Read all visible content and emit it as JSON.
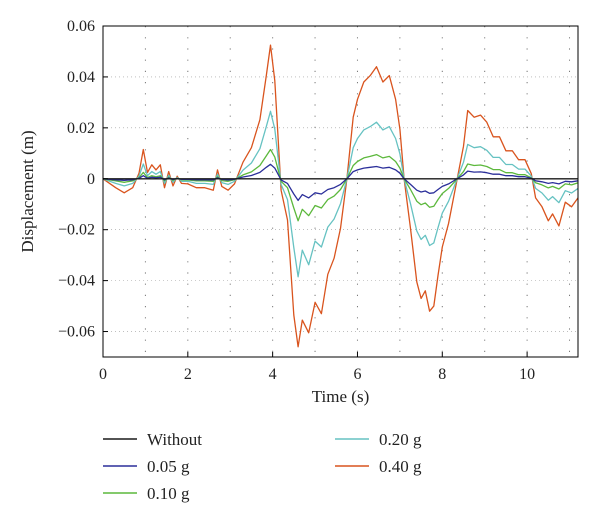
{
  "chart_data": {
    "type": "line",
    "xlabel": "Time (s)",
    "ylabel": "Displacement (m)",
    "xlim": [
      0,
      11.2
    ],
    "ylim": [
      -0.07,
      0.06
    ],
    "xticks": [
      0,
      2,
      4,
      6,
      8,
      10
    ],
    "xtick_labels": [
      "0",
      "2",
      "4",
      "6",
      "8",
      "10"
    ],
    "yticks": [
      -0.06,
      -0.04,
      -0.02,
      0,
      0.02,
      0.04,
      0.06
    ],
    "ytick_labels": [
      "−0.06",
      "−0.04",
      "−0.02",
      "0",
      "0.02",
      "0.04",
      "0.06"
    ],
    "grid": "dotted",
    "legend_position": "bottom",
    "x": [
      0,
      0.3,
      0.5,
      0.7,
      0.85,
      0.95,
      1.05,
      1.15,
      1.25,
      1.35,
      1.45,
      1.55,
      1.65,
      1.75,
      1.85,
      2.0,
      2.2,
      2.4,
      2.6,
      2.7,
      2.8,
      2.95,
      3.1,
      3.3,
      3.5,
      3.7,
      3.85,
      3.95,
      4.05,
      4.2,
      4.35,
      4.5,
      4.6,
      4.7,
      4.85,
      5.0,
      5.15,
      5.3,
      5.45,
      5.6,
      5.75,
      5.9,
      6.0,
      6.15,
      6.3,
      6.45,
      6.6,
      6.75,
      6.9,
      7.0,
      7.1,
      7.25,
      7.4,
      7.5,
      7.6,
      7.7,
      7.8,
      7.9,
      8.0,
      8.15,
      8.3,
      8.5,
      8.6,
      8.75,
      8.9,
      9.05,
      9.2,
      9.35,
      9.5,
      9.65,
      9.8,
      9.95,
      10.1,
      10.2,
      10.35,
      10.5,
      10.6,
      10.75,
      10.9,
      11.05,
      11.2
    ],
    "series": [
      {
        "name": "Without",
        "color": "#1a1a1a",
        "values": [
          0,
          0,
          0,
          0,
          0,
          0,
          0,
          0,
          0,
          0,
          0,
          0,
          0,
          0,
          0,
          0,
          0,
          0,
          0,
          0,
          0,
          0,
          0,
          0,
          0,
          0,
          0,
          0,
          0,
          0,
          0,
          0,
          0,
          0,
          0,
          0,
          0,
          0,
          0,
          0,
          0,
          0,
          0,
          0,
          0,
          0,
          0,
          0,
          0,
          0,
          0,
          0,
          0,
          0,
          0,
          0,
          0,
          0,
          0,
          0,
          0,
          0,
          0,
          0,
          0,
          0,
          0,
          0,
          0,
          0,
          0,
          0,
          0,
          0,
          0,
          0,
          0,
          0,
          0,
          0,
          0
        ]
      },
      {
        "name": "0.05 g",
        "color": "#2b2f9a",
        "values": [
          0,
          -0.0004,
          -0.0006,
          -0.0004,
          0.0002,
          0.0012,
          0.0002,
          0.0006,
          0.0004,
          0.0006,
          -0.0004,
          0.0003,
          -0.0003,
          0.0001,
          -0.0002,
          -0.0002,
          -0.0004,
          -0.0004,
          -0.0005,
          0.0004,
          -0.0003,
          -0.0005,
          -0.0002,
          0.0007,
          0.0013,
          0.0025,
          0.0045,
          0.0057,
          0.0042,
          -0.0005,
          -0.0018,
          -0.006,
          -0.0085,
          -0.0062,
          -0.0075,
          -0.0055,
          -0.006,
          -0.0042,
          -0.0035,
          -0.0022,
          0,
          0.0028,
          0.0035,
          0.0042,
          0.0045,
          0.0048,
          0.0042,
          0.0045,
          0.0035,
          0.0022,
          0,
          -0.0022,
          -0.0045,
          -0.0052,
          -0.0048,
          -0.0057,
          -0.0055,
          -0.0042,
          -0.003,
          -0.002,
          -0.0005,
          0.0015,
          0.003,
          0.0026,
          0.0027,
          0.0024,
          0.0018,
          0.0018,
          0.0012,
          0.0012,
          0.0008,
          0.0008,
          0.0002,
          -0.0008,
          -0.0012,
          -0.0018,
          -0.0015,
          -0.002,
          -0.001,
          -0.0012,
          -0.0008
        ]
      },
      {
        "name": "0.10 g",
        "color": "#5cb83c",
        "values": [
          0,
          -0.0008,
          -0.0014,
          -0.0008,
          0.0004,
          0.0025,
          0.0005,
          0.0012,
          0.0008,
          0.0012,
          -0.0008,
          0.0006,
          -0.0006,
          0.0002,
          -0.0004,
          -0.0005,
          -0.0008,
          -0.0008,
          -0.001,
          0.0008,
          -0.0007,
          -0.001,
          -0.0004,
          0.0015,
          0.0027,
          0.0052,
          0.009,
          0.0115,
          0.0085,
          -0.001,
          -0.0035,
          -0.0115,
          -0.0165,
          -0.012,
          -0.0145,
          -0.0105,
          -0.0115,
          -0.0082,
          -0.0068,
          -0.0042,
          0,
          0.0052,
          0.0068,
          0.0082,
          0.0088,
          0.0095,
          0.0082,
          0.0088,
          0.0068,
          0.0042,
          0,
          -0.0042,
          -0.0088,
          -0.0102,
          -0.0095,
          -0.0112,
          -0.0108,
          -0.0082,
          -0.0058,
          -0.0038,
          -0.001,
          0.0028,
          0.0058,
          0.0052,
          0.0054,
          0.0048,
          0.0036,
          0.0036,
          0.0024,
          0.0024,
          0.0016,
          0.0016,
          0.0004,
          -0.0016,
          -0.0024,
          -0.0036,
          -0.003,
          -0.004,
          -0.002,
          -0.0024,
          -0.0016
        ]
      },
      {
        "name": "0.20 g",
        "color": "#66c2c2",
        "values": [
          0,
          -0.0018,
          -0.0028,
          -0.0018,
          0.001,
          0.0058,
          0.0012,
          0.0028,
          0.0018,
          0.0028,
          -0.0018,
          0.0014,
          -0.0014,
          0.0005,
          -0.001,
          -0.001,
          -0.0018,
          -0.0018,
          -0.0022,
          0.0018,
          -0.0015,
          -0.0022,
          -0.001,
          0.0034,
          0.0062,
          0.0118,
          0.0205,
          0.0265,
          0.0195,
          -0.0022,
          -0.0082,
          -0.027,
          -0.0385,
          -0.028,
          -0.0338,
          -0.0245,
          -0.0268,
          -0.019,
          -0.0158,
          -0.0098,
          0,
          0.0122,
          0.0158,
          0.0192,
          0.0205,
          0.0222,
          0.0192,
          0.0205,
          0.0158,
          0.0098,
          0,
          -0.0098,
          -0.0205,
          -0.0238,
          -0.0222,
          -0.0262,
          -0.0252,
          -0.0192,
          -0.0135,
          -0.0088,
          -0.0022,
          0.0065,
          0.0135,
          0.0122,
          0.0126,
          0.0112,
          0.0084,
          0.0084,
          0.0056,
          0.0056,
          0.0038,
          0.0038,
          0.001,
          -0.0038,
          -0.0056,
          -0.0084,
          -0.007,
          -0.0094,
          -0.0047,
          -0.0056,
          -0.0038
        ]
      },
      {
        "name": "0.40 g",
        "color": "#d9541e",
        "values": [
          0,
          -0.0035,
          -0.0055,
          -0.0035,
          0.0022,
          0.0115,
          0.0025,
          0.0055,
          0.0035,
          0.0055,
          -0.0035,
          0.0028,
          -0.0028,
          0.001,
          -0.0018,
          -0.002,
          -0.0035,
          -0.0035,
          -0.0045,
          0.0035,
          -0.003,
          -0.0045,
          -0.002,
          0.0065,
          0.0122,
          0.0232,
          0.0405,
          0.0525,
          0.0385,
          -0.0045,
          -0.0162,
          -0.0535,
          -0.066,
          -0.0555,
          -0.0605,
          -0.0485,
          -0.053,
          -0.0375,
          -0.0312,
          -0.0195,
          0,
          0.0242,
          0.0312,
          0.038,
          0.0405,
          0.044,
          0.038,
          0.0405,
          0.0312,
          0.0195,
          0,
          -0.0195,
          -0.0405,
          -0.047,
          -0.044,
          -0.052,
          -0.05,
          -0.038,
          -0.0268,
          -0.0175,
          -0.0045,
          0.0128,
          0.0268,
          0.0242,
          0.025,
          0.0222,
          0.0165,
          0.0165,
          0.011,
          0.011,
          0.0075,
          0.0075,
          0.002,
          -0.0075,
          -0.011,
          -0.0165,
          -0.0138,
          -0.0185,
          -0.0092,
          -0.011,
          -0.0075
        ]
      }
    ]
  }
}
